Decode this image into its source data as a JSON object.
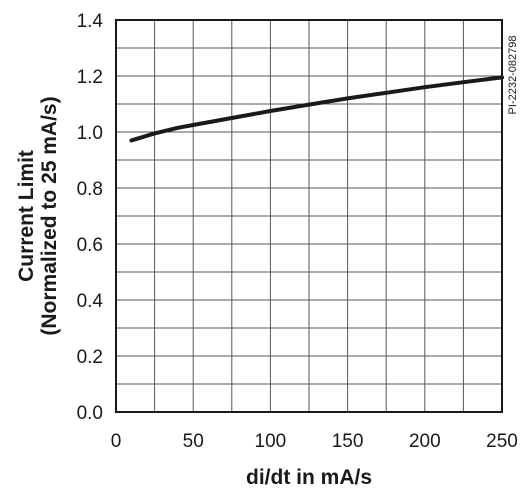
{
  "chart_data": {
    "type": "line",
    "title": "",
    "code": "PI-2232-082798",
    "xlabel": "di/dt in mA/s",
    "ylabel_line1": "Current Limit",
    "ylabel_line2": "(Normalized to 25 mA/s)",
    "xlim": [
      0,
      250
    ],
    "ylim": [
      0.0,
      1.4
    ],
    "grid": true,
    "x_ticks": [
      0,
      50,
      100,
      150,
      200,
      250
    ],
    "x_tick_labels": [
      "0",
      "50",
      "100",
      "150",
      "200",
      "250"
    ],
    "y_ticks": [
      0.0,
      0.2,
      0.4,
      0.6,
      0.8,
      1.0,
      1.2,
      1.4
    ],
    "y_tick_labels": [
      "0.0",
      "0.2",
      "0.4",
      "0.6",
      "0.8",
      "1.0",
      "1.2",
      "1.4"
    ],
    "x_minor_step": 25,
    "y_minor_step": 0.1,
    "series": [
      {
        "color": "#1a1a1a",
        "x": [
          10,
          25,
          40,
          50,
          75,
          100,
          125,
          150,
          175,
          200,
          225,
          250
        ],
        "y": [
          0.97,
          0.995,
          1.015,
          1.025,
          1.05,
          1.075,
          1.098,
          1.12,
          1.14,
          1.16,
          1.178,
          1.195
        ]
      }
    ]
  }
}
